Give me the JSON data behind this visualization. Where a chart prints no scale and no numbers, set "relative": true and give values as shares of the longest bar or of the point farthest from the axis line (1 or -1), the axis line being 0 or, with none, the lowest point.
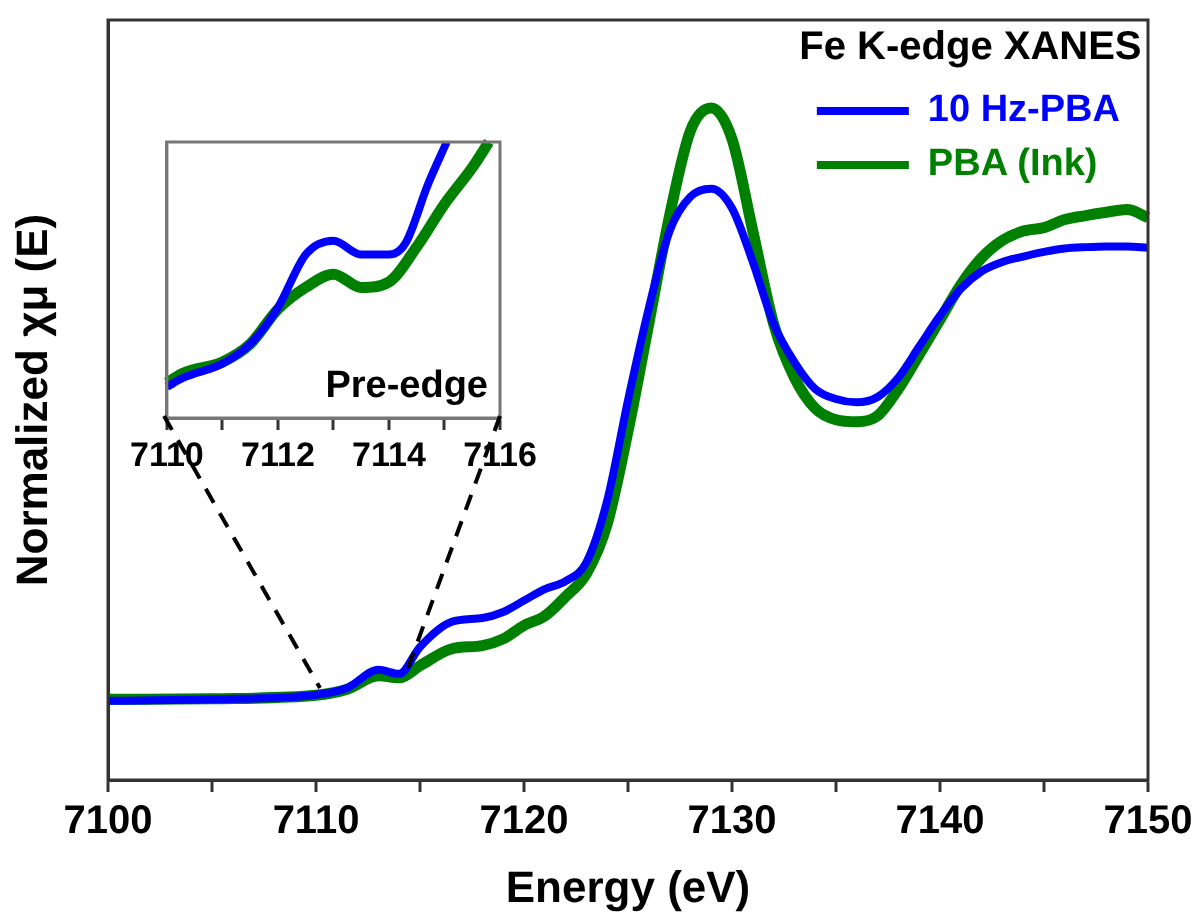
{
  "chart_data": [
    {
      "type": "line",
      "xlabel": "Energy (eV)",
      "ylabel": "Normalized χμ (E)",
      "legend_title": "Fe K-edge XANES",
      "legend": "top right",
      "relative": true,
      "tick_labels": "x",
      "xlim": [
        7100,
        7150
      ],
      "xticks": [
        7100,
        {
          "value": 7105,
          "label": null
        },
        7110,
        {
          "value": 7115,
          "label": null
        },
        7120,
        {
          "value": 7125,
          "label": null
        },
        7130,
        {
          "value": 7135,
          "label": null
        },
        7140,
        {
          "value": 7145,
          "label": null
        },
        7150
      ],
      "x": [
        7100,
        7105,
        7110,
        7111.5,
        7113,
        7114,
        7115,
        7116.5,
        7118,
        7119,
        7120,
        7121,
        7122,
        7123,
        7124,
        7125,
        7126,
        7127,
        7128,
        7129,
        7130,
        7131,
        7132,
        7133,
        7134,
        7135,
        7136,
        7137,
        7138,
        7139,
        7140,
        7141,
        7142,
        7143,
        7144,
        7145,
        7146,
        7147,
        7148,
        7149,
        7150
      ],
      "series": [
        {
          "name": "10 Hz-PBA",
          "color": "#0000ff",
          "values": [
            0.118,
            0.12,
            0.127,
            0.137,
            0.164,
            0.158,
            0.198,
            0.235,
            0.241,
            0.25,
            0.267,
            0.284,
            0.296,
            0.324,
            0.416,
            0.565,
            0.702,
            0.817,
            0.868,
            0.88,
            0.851,
            0.771,
            0.679,
            0.622,
            0.582,
            0.567,
            0.562,
            0.57,
            0.599,
            0.645,
            0.691,
            0.731,
            0.757,
            0.771,
            0.779,
            0.786,
            0.791,
            0.793,
            0.794,
            0.794,
            0.792
          ]
        },
        {
          "name": "PBA (Ink)",
          "color": "#008000",
          "values": [
            0.12,
            0.121,
            0.126,
            0.135,
            0.155,
            0.152,
            0.17,
            0.195,
            0.2,
            0.21,
            0.23,
            0.244,
            0.273,
            0.307,
            0.381,
            0.519,
            0.679,
            0.84,
            0.966,
            1.0,
            0.954,
            0.817,
            0.679,
            0.599,
            0.553,
            0.536,
            0.533,
            0.542,
            0.582,
            0.633,
            0.685,
            0.737,
            0.777,
            0.803,
            0.817,
            0.822,
            0.834,
            0.84,
            0.845,
            0.849,
            0.837
          ]
        }
      ]
    },
    {
      "type": "line",
      "relative": true,
      "tick_labels": "x",
      "annotations": [
        "Pre-edge"
      ],
      "xlim": [
        7110,
        7116
      ],
      "xticks": [
        7110,
        {
          "value": 7111,
          "label": null
        },
        7112,
        {
          "value": 7113,
          "label": null
        },
        7114,
        {
          "value": 7115,
          "label": null
        },
        7116
      ],
      "series": [
        {
          "color": "#0000ff",
          "x": [
            7110,
            7110.3,
            7111,
            7111.5,
            7112,
            7112.5,
            7113,
            7113.5,
            7114,
            7114.3,
            7114.7,
            7115.04
          ],
          "values": [
            0.113,
            0.146,
            0.197,
            0.268,
            0.4,
            0.592,
            0.642,
            0.592,
            0.592,
            0.634,
            0.845,
            1.0
          ]
        },
        {
          "color": "#008000",
          "x": [
            7110,
            7110.3,
            7111,
            7111.5,
            7112,
            7112.5,
            7113,
            7113.5,
            7114,
            7114.5,
            7115,
            7115.5,
            7115.8
          ],
          "values": [
            0.127,
            0.163,
            0.203,
            0.268,
            0.394,
            0.473,
            0.521,
            0.473,
            0.493,
            0.62,
            0.775,
            0.907,
            1.0
          ]
        }
      ]
    }
  ]
}
